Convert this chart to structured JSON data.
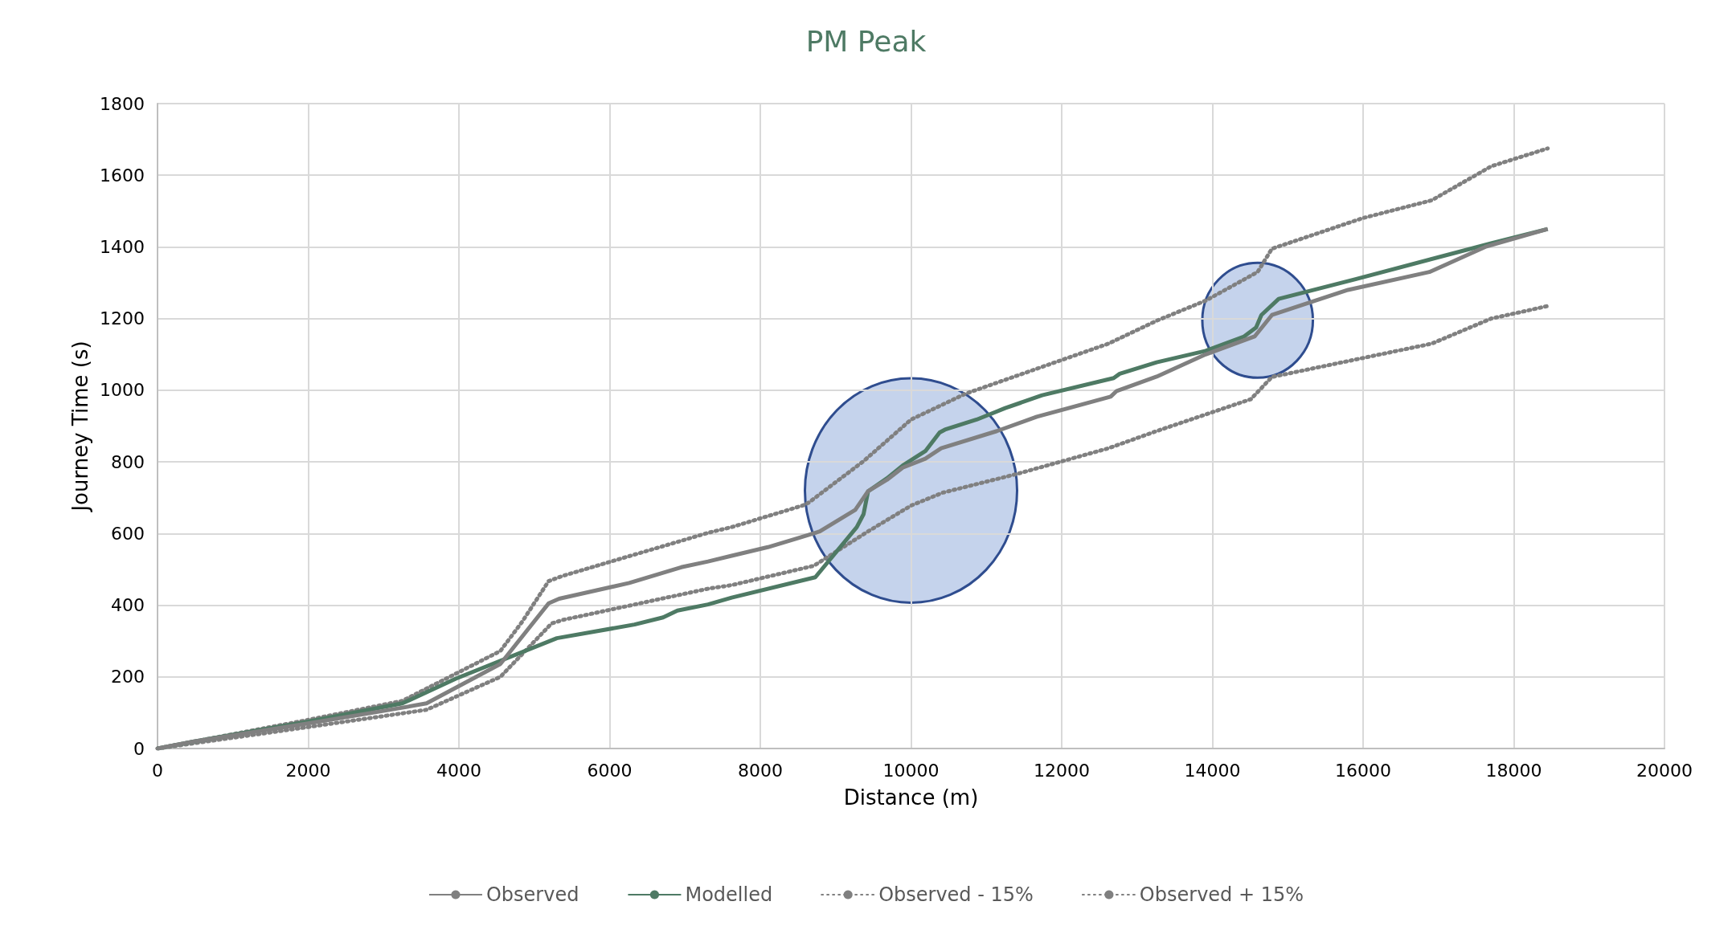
{
  "chart_data": {
    "type": "line",
    "title": "PM Peak",
    "xlabel": "Distance (m)",
    "ylabel": "Journey Time (s)",
    "xlim": [
      0,
      20000
    ],
    "xticks": [
      0,
      2000,
      4000,
      6000,
      8000,
      10000,
      12000,
      14000,
      16000,
      18000,
      20000
    ],
    "ylim": [
      0,
      1800
    ],
    "yticks": [
      0,
      200,
      400,
      600,
      800,
      1000,
      1200,
      1400,
      1600,
      1800
    ],
    "grid": true,
    "legend": "bottom",
    "marker": "none",
    "series": [
      {
        "name": "Observed",
        "color": "#808080",
        "line_style": "solid",
        "x": [
          0,
          500,
          2000,
          3000,
          3570,
          4550,
          5190,
          5330,
          6260,
          6950,
          7306,
          7620,
          8100,
          8480,
          8790,
          9260,
          9430,
          9680,
          9890,
          10190,
          10400,
          11140,
          11670,
          12650,
          12730,
          13260,
          13910,
          14560,
          14790,
          15800,
          16880,
          17620,
          18450
        ],
        "values": [
          0,
          20,
          70,
          105,
          126,
          236,
          405,
          418,
          462,
          506,
          522,
          538,
          562,
          586,
          606,
          666,
          718,
          750,
          784,
          809,
          838,
          886,
          926,
          982,
          998,
          1038,
          1100,
          1150,
          1210,
          1280,
          1330,
          1400,
          1450
        ]
      },
      {
        "name": "Modelled",
        "color": "#4e7a64",
        "line_style": "solid",
        "x": [
          0,
          500,
          2000,
          3250,
          3960,
          5300,
          6330,
          6710,
          6900,
          7306,
          7620,
          8730,
          9280,
          9370,
          9430,
          9680,
          9890,
          10190,
          10380,
          10450,
          10870,
          11250,
          11740,
          12690,
          12770,
          13260,
          13910,
          14420,
          14580,
          14650,
          14880,
          15900,
          17700,
          18450
        ],
        "values": [
          0,
          20,
          75,
          126,
          195,
          308,
          346,
          366,
          385,
          402,
          421,
          478,
          618,
          654,
          718,
          754,
          790,
          830,
          882,
          890,
          918,
          950,
          986,
          1034,
          1046,
          1078,
          1110,
          1150,
          1175,
          1210,
          1255,
          1310,
          1410,
          1450
        ]
      },
      {
        "name": "Observed - 15%",
        "color": "#808080",
        "line_style": "dotted",
        "x": [
          0,
          2000,
          3570,
          4550,
          5230,
          5380,
          7306,
          7620,
          8710,
          9430,
          10000,
          10420,
          11400,
          12620,
          13260,
          14510,
          14790,
          16910,
          17700,
          18450
        ],
        "values": [
          0,
          60,
          108,
          200,
          349,
          359,
          446,
          456,
          510,
          606,
          678,
          714,
          766,
          838,
          886,
          975,
          1037,
          1130,
          1200,
          1235
        ]
      },
      {
        "name": "Observed + 15%",
        "color": "#808080",
        "line_style": "dotted",
        "x": [
          0,
          2000,
          3250,
          4550,
          4840,
          5190,
          5380,
          7306,
          7620,
          8560,
          8640,
          9370,
          10000,
          10720,
          12620,
          13260,
          13910,
          14600,
          14790,
          15990,
          16910,
          17700,
          18450
        ],
        "values": [
          0,
          80,
          133,
          272,
          354,
          467,
          482,
          602,
          618,
          678,
          686,
          802,
          918,
          990,
          1130,
          1194,
          1250,
          1330,
          1395,
          1480,
          1530,
          1625,
          1675
        ]
      }
    ]
  }
}
